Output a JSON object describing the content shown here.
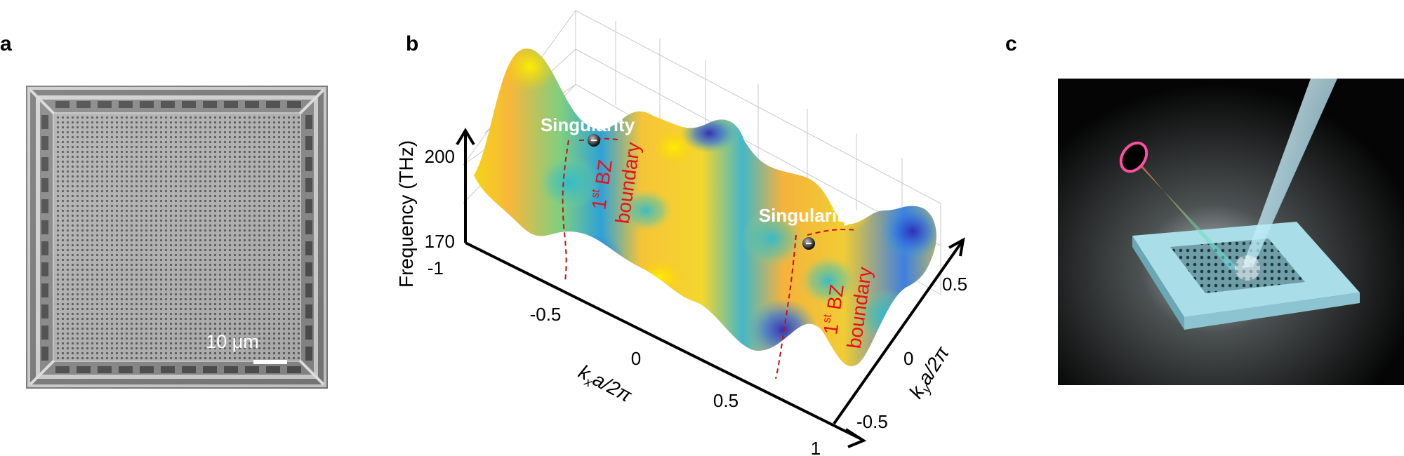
{
  "panel_a": {
    "label": "a",
    "scale_bar": "10 μm"
  },
  "panel_b": {
    "label": "b",
    "z_axis_label": "Frequency (THz)",
    "z_ticks": [
      "200",
      "170"
    ],
    "x_axis_label": "k",
    "x_axis_sub": "x",
    "x_axis_rest": "a/2π",
    "x_ticks": [
      "-1",
      "-0.5",
      "0",
      "0.5",
      "1"
    ],
    "y_axis_label": "k",
    "y_axis_sub": "y",
    "y_axis_rest": "a/2π",
    "y_ticks": [
      "-0.5",
      "0",
      "0.5"
    ],
    "singularity_label": "Singularity",
    "bz_prefix": "1",
    "bz_super": "st",
    "bz_rest": " BZ",
    "bz_line2": "boundary",
    "colors": {
      "annotation": "#e8101a",
      "singularity_text": "#ffffff"
    }
  },
  "panel_c": {
    "label": "c"
  }
}
